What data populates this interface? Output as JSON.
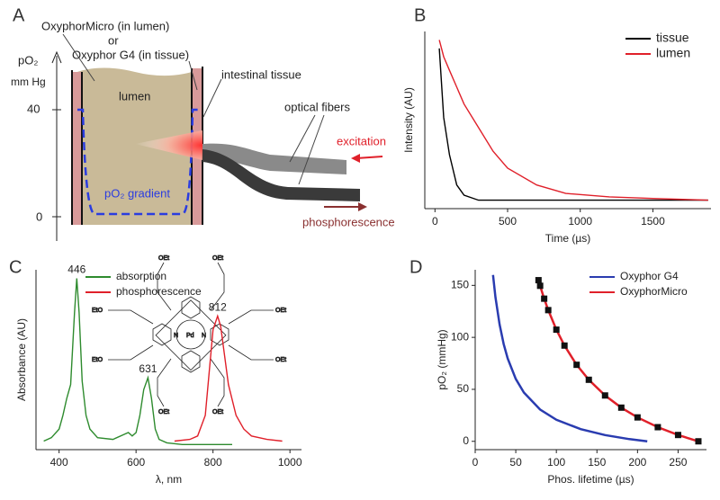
{
  "diagram": {
    "panel_label": "A",
    "probe_lumen": "OxyphorMicro (in lumen)",
    "or": "or",
    "probe_tissue": "Oxyphor G4 (in tissue)",
    "axis_label": "pO₂",
    "axis_unit": "mm Hg",
    "tick_high": "40",
    "tick_low": "0",
    "lumen": "lumen",
    "tissue": "intestinal tissue",
    "fibers": "optical fibers",
    "excitation": "excitation",
    "gradient": "pO₂ gradient",
    "phosphorescence": "phosphorescence"
  },
  "structure_labels": [
    "OEt",
    "OEt",
    "OEt",
    "OEt",
    "EtO",
    "OEt",
    "EtO",
    "OEt",
    "N",
    "Pd",
    "N"
  ],
  "chart_data": [
    {
      "type": "line",
      "panel_label": "B",
      "x_label": "Time (µs)",
      "y_label": "Intensity (AU)",
      "xlim": [
        -70,
        1900
      ],
      "xticks": [
        0,
        500,
        1000,
        1500
      ],
      "ylim": [
        0,
        1.05
      ],
      "legend": "upper right",
      "series": [
        {
          "name": "tissue",
          "color": "#000000",
          "x": [
            30,
            60,
            100,
            150,
            200,
            300,
            400,
            500,
            700,
            900,
            1200,
            1500,
            1880
          ],
          "values": [
            0.95,
            0.54,
            0.32,
            0.14,
            0.08,
            0.05,
            0.05,
            0.05,
            0.05,
            0.05,
            0.05,
            0.05,
            0.05
          ]
        },
        {
          "name": "lumen",
          "color": "#e0202a",
          "x": [
            30,
            60,
            100,
            150,
            200,
            300,
            400,
            500,
            700,
            900,
            1200,
            1500,
            1880
          ],
          "values": [
            1.0,
            0.9,
            0.82,
            0.72,
            0.62,
            0.48,
            0.34,
            0.24,
            0.14,
            0.09,
            0.07,
            0.06,
            0.05
          ]
        }
      ]
    },
    {
      "type": "line",
      "panel_label": "C",
      "x_label": "λ, nm",
      "y_label": "Absorbance (AU)",
      "xlim": [
        340,
        1030
      ],
      "xticks": [
        400,
        600,
        800,
        1000
      ],
      "ylim": [
        0,
        1.05
      ],
      "legend": "upper left",
      "series": [
        {
          "name": "absorption",
          "color": "#2e8b2e",
          "x": [
            360,
            380,
            400,
            410,
            420,
            430,
            440,
            446,
            452,
            460,
            470,
            480,
            500,
            540,
            570,
            580,
            590,
            600,
            610,
            620,
            631,
            640,
            650,
            660,
            680,
            720,
            780,
            850
          ],
          "values": [
            0.05,
            0.07,
            0.12,
            0.2,
            0.3,
            0.38,
            0.8,
            1.0,
            0.8,
            0.4,
            0.2,
            0.12,
            0.07,
            0.06,
            0.09,
            0.1,
            0.08,
            0.1,
            0.2,
            0.35,
            0.42,
            0.3,
            0.12,
            0.06,
            0.04,
            0.03,
            0.03,
            0.03
          ]
        },
        {
          "name": "phosphorescence",
          "color": "#e0202a",
          "x": [
            700,
            740,
            760,
            780,
            790,
            800,
            812,
            820,
            830,
            840,
            860,
            880,
            900,
            940,
            980
          ],
          "values": [
            0.05,
            0.06,
            0.08,
            0.2,
            0.45,
            0.7,
            0.78,
            0.72,
            0.55,
            0.38,
            0.2,
            0.12,
            0.08,
            0.06,
            0.05
          ]
        }
      ],
      "annotations": [
        {
          "x": 446,
          "y": 1.0
        },
        {
          "x": 631,
          "y": 0.42
        },
        {
          "x": 812,
          "y": 0.78
        }
      ]
    },
    {
      "type": "line",
      "panel_label": "D",
      "x_label": "Phos. lifetime (µs)",
      "y_label": "pO₂ (mmHg)",
      "xlim": [
        0,
        285
      ],
      "xticks": [
        0,
        50,
        100,
        150,
        200,
        250
      ],
      "ylim": [
        -8,
        165
      ],
      "yticks": [
        0,
        50,
        100,
        150
      ],
      "legend": "upper right",
      "series": [
        {
          "name": "Oxyphor G4",
          "color": "#2a3cb0",
          "x": [
            22,
            25,
            30,
            35,
            40,
            50,
            60,
            80,
            100,
            130,
            160,
            190,
            212
          ],
          "values": [
            160.0,
            138.6,
            112.4,
            93.7,
            79.7,
            60.0,
            46.9,
            30.6,
            20.7,
            11.7,
            6.0,
            2.1,
            0
          ]
        },
        {
          "name": "OxyphorMicro",
          "color": "#e0202a",
          "markers": true,
          "marker_color": "#111111",
          "x": [
            78,
            80,
            85,
            90,
            100,
            110,
            125,
            140,
            160,
            180,
            200,
            225,
            250,
            275
          ],
          "values": [
            155.0,
            149.6,
            137.2,
            126.2,
            107.4,
            92.1,
            73.6,
            59.2,
            44.1,
            32.4,
            23.0,
            13.6,
            6.1,
            0
          ]
        }
      ]
    }
  ]
}
